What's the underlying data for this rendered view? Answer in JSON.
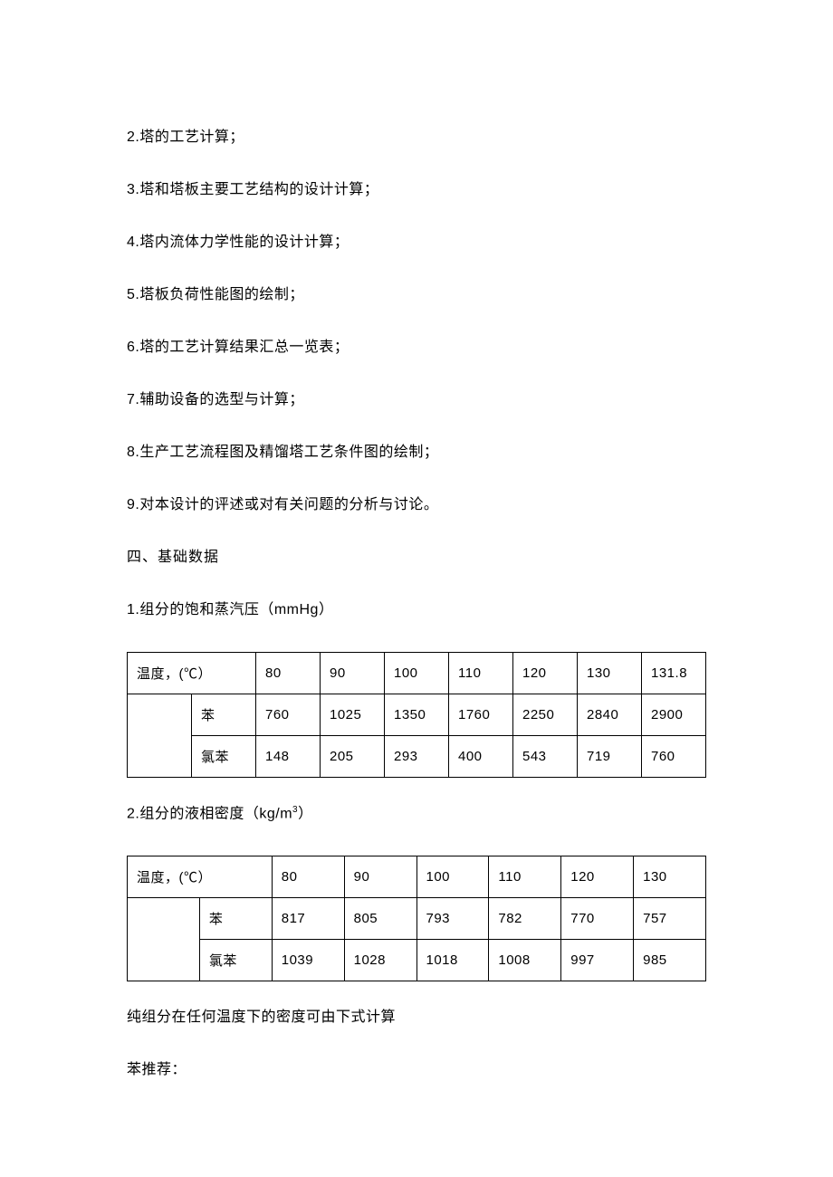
{
  "list_items": [
    "2.塔的工艺计算；",
    "3.塔和塔板主要工艺结构的设计计算；",
    "4.塔内流体力学性能的设计计算；",
    "5.塔板负荷性能图的绘制；",
    "6.塔的工艺计算结果汇总一览表；",
    "7.辅助设备的选型与计算；",
    "8.生产工艺流程图及精馏塔工艺条件图的绘制；",
    "9.对本设计的评述或对有关问题的分析与讨论。"
  ],
  "section_heading": "四、基础数据",
  "table1": {
    "title": "1.组分的饱和蒸汽压（mmHg）",
    "header_label": "温度，(℃）",
    "columns": [
      "80",
      "90",
      "100",
      "110",
      "120",
      "130",
      "131.8"
    ],
    "rows": [
      {
        "label": "苯",
        "values": [
          "760",
          "1025",
          "1350",
          "1760",
          "2250",
          "2840",
          "2900"
        ]
      },
      {
        "label": "氯苯",
        "values": [
          "148",
          "205",
          "293",
          "400",
          "543",
          "719",
          "760"
        ]
      }
    ]
  },
  "table2": {
    "title_prefix": "2.组分的液相密度（kg/m",
    "title_sup": "3",
    "title_suffix": "）",
    "header_label": "温度，(℃）",
    "columns": [
      "80",
      "90",
      "100",
      "110",
      "120",
      "130"
    ],
    "rows": [
      {
        "label": "苯",
        "values": [
          "817",
          "805",
          "793",
          "782",
          "770",
          "757"
        ]
      },
      {
        "label": "氯苯",
        "values": [
          "1039",
          "1028",
          "1018",
          "1008",
          "997",
          "985"
        ]
      }
    ]
  },
  "after_lines": [
    "纯组分在任何温度下的密度可由下式计算",
    "苯推荐："
  ]
}
